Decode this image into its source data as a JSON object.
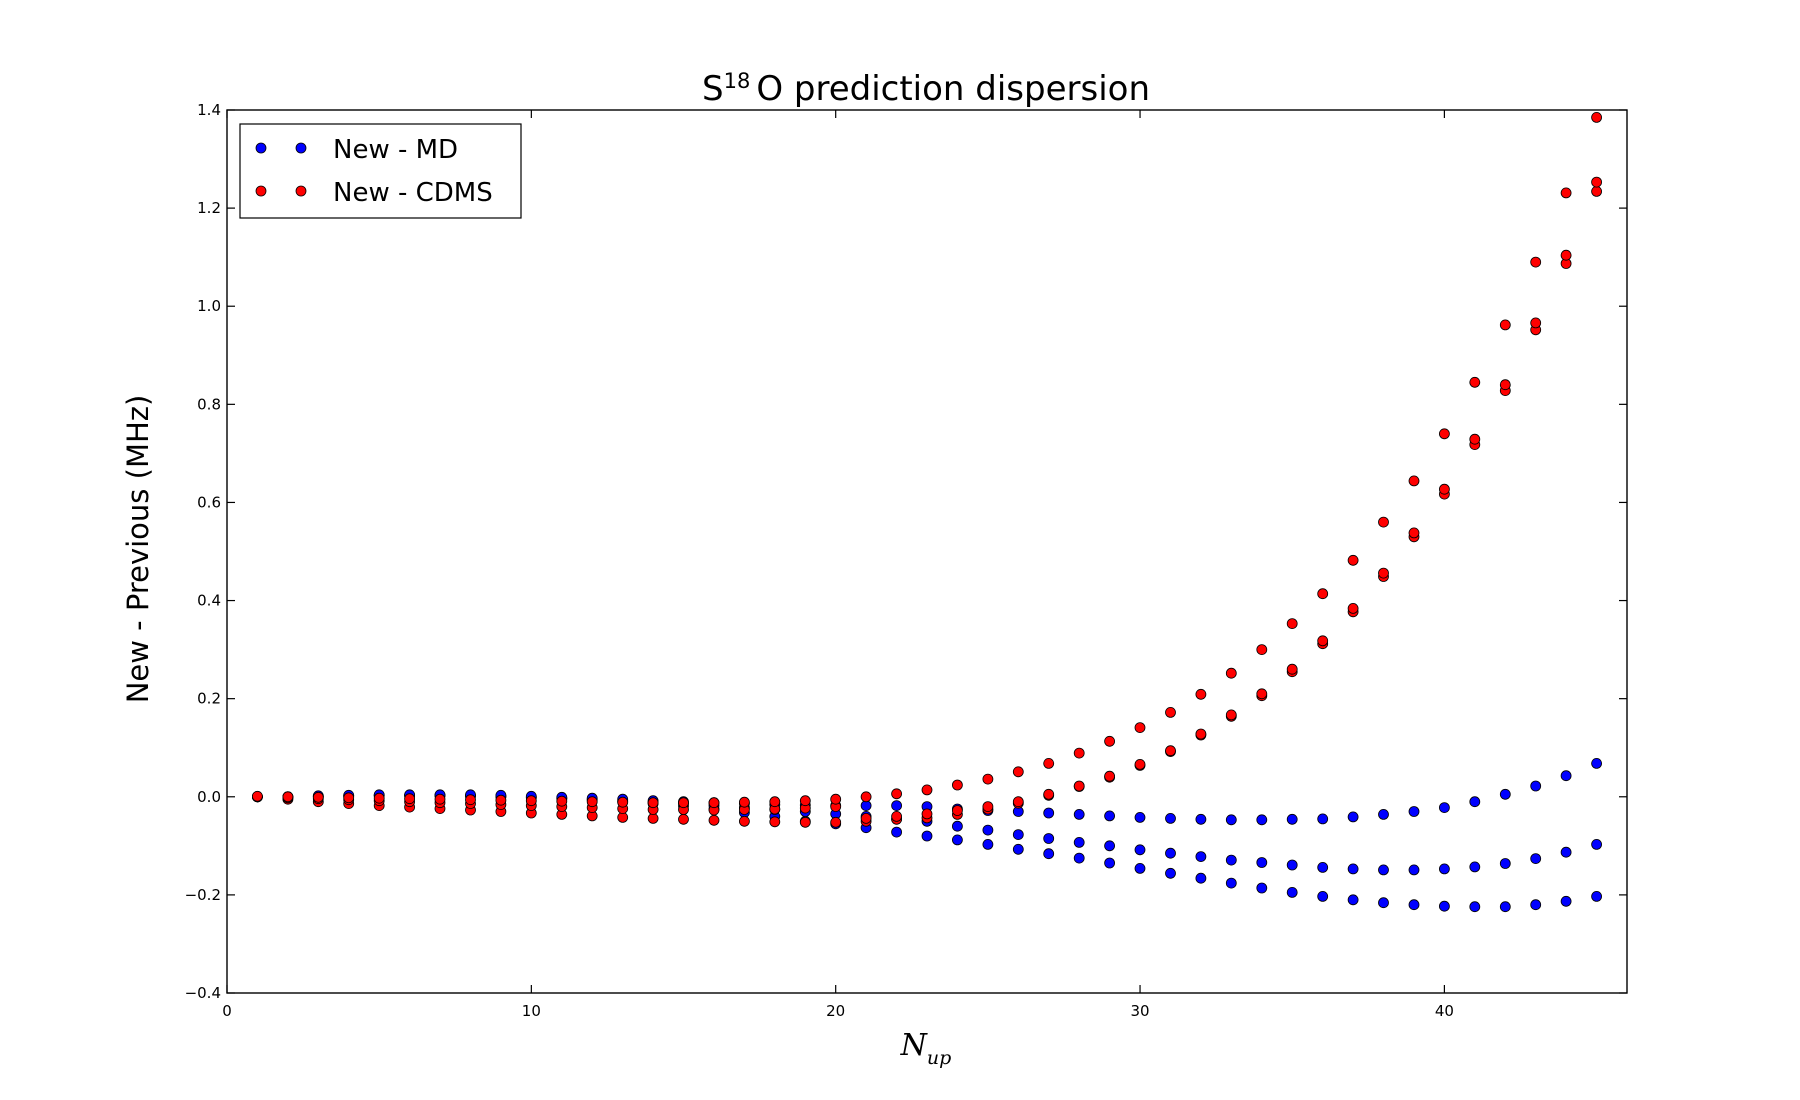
{
  "chart_data": {
    "type": "scatter",
    "title": {
      "base": "S",
      "sup": "18",
      "rest": "O prediction dispersion"
    },
    "xlabel": {
      "base": "N",
      "sub": "up"
    },
    "ylabel": "New - Previous (MHz)",
    "xlim": [
      0,
      46
    ],
    "ylim": [
      -0.4,
      1.4
    ],
    "x_ticks": [
      0,
      10,
      20,
      30,
      40
    ],
    "x_tick_labels": [
      "0",
      "10",
      "20",
      "30",
      "40"
    ],
    "y_ticks": [
      -0.4,
      -0.2,
      0.0,
      0.2,
      0.4,
      0.6,
      0.8,
      1.0,
      1.2,
      1.4
    ],
    "y_tick_labels": [
      "−0.4",
      "−0.2",
      "0.0",
      "0.2",
      "0.4",
      "0.6",
      "0.8",
      "1.0",
      "1.2",
      "1.4"
    ],
    "grid": false,
    "legend_position": "top-left",
    "series": [
      {
        "name": "New - MD",
        "color": "#0000ff",
        "points": [
          [
            1,
            0.0
          ],
          [
            1,
            0.0
          ],
          [
            1,
            0.0
          ],
          [
            2,
            0.0
          ],
          [
            2,
            0.0
          ],
          [
            2,
            0.0
          ],
          [
            3,
            0.0
          ],
          [
            3,
            0.001
          ],
          [
            3,
            0.002
          ],
          [
            4,
            0.001
          ],
          [
            4,
            0.002
          ],
          [
            4,
            0.003
          ],
          [
            5,
            0.002
          ],
          [
            5,
            0.003
          ],
          [
            5,
            0.004
          ],
          [
            6,
            0.002
          ],
          [
            6,
            0.003
          ],
          [
            6,
            0.004
          ],
          [
            7,
            0.002
          ],
          [
            7,
            0.003
          ],
          [
            7,
            0.004
          ],
          [
            8,
            0.001
          ],
          [
            8,
            0.002
          ],
          [
            8,
            0.004
          ],
          [
            9,
            0.0
          ],
          [
            9,
            0.001
          ],
          [
            9,
            0.003
          ],
          [
            10,
            -0.002
          ],
          [
            10,
            -0.001
          ],
          [
            10,
            0.001
          ],
          [
            11,
            -0.004
          ],
          [
            11,
            -0.003
          ],
          [
            11,
            -0.001
          ],
          [
            12,
            -0.007
          ],
          [
            12,
            -0.005
          ],
          [
            12,
            -0.003
          ],
          [
            13,
            -0.01
          ],
          [
            13,
            -0.008
          ],
          [
            13,
            -0.005
          ],
          [
            14,
            -0.014
          ],
          [
            14,
            -0.011
          ],
          [
            14,
            -0.008
          ],
          [
            15,
            -0.019
          ],
          [
            15,
            -0.014
          ],
          [
            15,
            -0.01
          ],
          [
            16,
            -0.025
          ],
          [
            16,
            -0.018
          ],
          [
            16,
            -0.012
          ],
          [
            17,
            -0.032
          ],
          [
            17,
            -0.022
          ],
          [
            17,
            -0.014
          ],
          [
            18,
            -0.04
          ],
          [
            18,
            -0.026
          ],
          [
            18,
            -0.016
          ],
          [
            19,
            -0.05
          ],
          [
            19,
            -0.03
          ],
          [
            19,
            -0.017
          ],
          [
            20,
            -0.055
          ],
          [
            20,
            -0.035
          ],
          [
            20,
            -0.018
          ],
          [
            21,
            -0.063
          ],
          [
            21,
            -0.04
          ],
          [
            21,
            -0.018
          ],
          [
            22,
            -0.072
          ],
          [
            22,
            -0.045
          ],
          [
            22,
            -0.018
          ],
          [
            23,
            -0.08
          ],
          [
            23,
            -0.05
          ],
          [
            23,
            -0.02
          ],
          [
            24,
            -0.088
          ],
          [
            24,
            -0.06
          ],
          [
            24,
            -0.025
          ],
          [
            25,
            -0.097
          ],
          [
            25,
            -0.068
          ],
          [
            25,
            -0.028
          ],
          [
            26,
            -0.107
          ],
          [
            26,
            -0.077
          ],
          [
            26,
            -0.03
          ],
          [
            27,
            -0.116
          ],
          [
            27,
            -0.085
          ],
          [
            27,
            -0.033
          ],
          [
            28,
            -0.125
          ],
          [
            28,
            -0.093
          ],
          [
            28,
            -0.036
          ],
          [
            29,
            -0.135
          ],
          [
            29,
            -0.1
          ],
          [
            29,
            -0.039
          ],
          [
            30,
            -0.146
          ],
          [
            30,
            -0.108
          ],
          [
            30,
            -0.042
          ],
          [
            31,
            -0.156
          ],
          [
            31,
            -0.115
          ],
          [
            31,
            -0.044
          ],
          [
            32,
            -0.166
          ],
          [
            32,
            -0.122
          ],
          [
            32,
            -0.046
          ],
          [
            33,
            -0.176
          ],
          [
            33,
            -0.129
          ],
          [
            33,
            -0.047
          ],
          [
            34,
            -0.186
          ],
          [
            34,
            -0.134
          ],
          [
            34,
            -0.047
          ],
          [
            35,
            -0.195
          ],
          [
            35,
            -0.139
          ],
          [
            35,
            -0.046
          ],
          [
            36,
            -0.203
          ],
          [
            36,
            -0.144
          ],
          [
            36,
            -0.045
          ],
          [
            37,
            -0.21
          ],
          [
            37,
            -0.147
          ],
          [
            37,
            -0.041
          ],
          [
            38,
            -0.216
          ],
          [
            38,
            -0.149
          ],
          [
            38,
            -0.036
          ],
          [
            39,
            -0.22
          ],
          [
            39,
            -0.149
          ],
          [
            39,
            -0.03
          ],
          [
            40,
            -0.223
          ],
          [
            40,
            -0.147
          ],
          [
            40,
            -0.022
          ],
          [
            41,
            -0.224
          ],
          [
            41,
            -0.143
          ],
          [
            41,
            -0.01
          ],
          [
            42,
            -0.224
          ],
          [
            42,
            -0.136
          ],
          [
            42,
            0.005
          ],
          [
            43,
            -0.22
          ],
          [
            43,
            -0.126
          ],
          [
            43,
            0.022
          ],
          [
            44,
            -0.213
          ],
          [
            44,
            -0.113
          ],
          [
            44,
            0.043
          ],
          [
            45,
            -0.203
          ],
          [
            45,
            -0.097
          ],
          [
            45,
            0.068
          ]
        ]
      },
      {
        "name": "New - CDMS",
        "color": "#ff0000",
        "points": [
          [
            1,
            0.0
          ],
          [
            1,
            0.0
          ],
          [
            1,
            0.001
          ],
          [
            2,
            -0.005
          ],
          [
            2,
            -0.002
          ],
          [
            2,
            0.0
          ],
          [
            3,
            -0.01
          ],
          [
            3,
            -0.004
          ],
          [
            3,
            -0.001
          ],
          [
            4,
            -0.014
          ],
          [
            4,
            -0.006
          ],
          [
            4,
            -0.002
          ],
          [
            5,
            -0.018
          ],
          [
            5,
            -0.008
          ],
          [
            5,
            -0.003
          ],
          [
            6,
            -0.021
          ],
          [
            6,
            -0.01
          ],
          [
            6,
            -0.004
          ],
          [
            7,
            -0.024
          ],
          [
            7,
            -0.012
          ],
          [
            7,
            -0.005
          ],
          [
            8,
            -0.027
          ],
          [
            8,
            -0.014
          ],
          [
            8,
            -0.006
          ],
          [
            9,
            -0.03
          ],
          [
            9,
            -0.016
          ],
          [
            9,
            -0.007
          ],
          [
            10,
            -0.033
          ],
          [
            10,
            -0.018
          ],
          [
            10,
            -0.008
          ],
          [
            11,
            -0.036
          ],
          [
            11,
            -0.02
          ],
          [
            11,
            -0.009
          ],
          [
            12,
            -0.039
          ],
          [
            12,
            -0.022
          ],
          [
            12,
            -0.01
          ],
          [
            13,
            -0.042
          ],
          [
            13,
            -0.024
          ],
          [
            13,
            -0.011
          ],
          [
            14,
            -0.044
          ],
          [
            14,
            -0.026
          ],
          [
            14,
            -0.012
          ],
          [
            15,
            -0.046
          ],
          [
            15,
            -0.026
          ],
          [
            15,
            -0.012
          ],
          [
            16,
            -0.048
          ],
          [
            16,
            -0.027
          ],
          [
            16,
            -0.012
          ],
          [
            17,
            -0.05
          ],
          [
            17,
            -0.026
          ],
          [
            17,
            -0.011
          ],
          [
            18,
            -0.051
          ],
          [
            18,
            -0.025
          ],
          [
            18,
            -0.01
          ],
          [
            19,
            -0.052
          ],
          [
            19,
            -0.023
          ],
          [
            19,
            -0.008
          ],
          [
            20,
            -0.052
          ],
          [
            20,
            -0.02
          ],
          [
            20,
            -0.005
          ],
          [
            21,
            -0.05
          ],
          [
            21,
            -0.044
          ],
          [
            21,
            0.0
          ],
          [
            22,
            -0.046
          ],
          [
            22,
            -0.04
          ],
          [
            22,
            0.006
          ],
          [
            23,
            -0.043
          ],
          [
            23,
            -0.035
          ],
          [
            23,
            0.014
          ],
          [
            24,
            -0.036
          ],
          [
            24,
            -0.028
          ],
          [
            24,
            0.024
          ],
          [
            25,
            -0.025
          ],
          [
            25,
            -0.02
          ],
          [
            25,
            0.036
          ],
          [
            26,
            -0.013
          ],
          [
            26,
            -0.01
          ],
          [
            26,
            0.051
          ],
          [
            27,
            0.003
          ],
          [
            27,
            0.005
          ],
          [
            27,
            0.068
          ],
          [
            28,
            0.021
          ],
          [
            28,
            0.022
          ],
          [
            28,
            0.089
          ],
          [
            29,
            0.04
          ],
          [
            29,
            0.042
          ],
          [
            29,
            0.113
          ],
          [
            30,
            0.064
          ],
          [
            30,
            0.066
          ],
          [
            30,
            0.141
          ],
          [
            31,
            0.092
          ],
          [
            31,
            0.094
          ],
          [
            31,
            0.172
          ],
          [
            32,
            0.126
          ],
          [
            32,
            0.128
          ],
          [
            32,
            0.209
          ],
          [
            33,
            0.164
          ],
          [
            33,
            0.167
          ],
          [
            33,
            0.252
          ],
          [
            34,
            0.206
          ],
          [
            34,
            0.21
          ],
          [
            34,
            0.3
          ],
          [
            35,
            0.255
          ],
          [
            35,
            0.26
          ],
          [
            35,
            0.353
          ],
          [
            36,
            0.312
          ],
          [
            36,
            0.318
          ],
          [
            36,
            0.414
          ],
          [
            37,
            0.377
          ],
          [
            37,
            0.384
          ],
          [
            37,
            0.482
          ],
          [
            38,
            0.449
          ],
          [
            38,
            0.456
          ],
          [
            38,
            0.56
          ],
          [
            39,
            0.53
          ],
          [
            39,
            0.538
          ],
          [
            39,
            0.644
          ],
          [
            40,
            0.617
          ],
          [
            40,
            0.627
          ],
          [
            40,
            0.74
          ],
          [
            41,
            0.718
          ],
          [
            41,
            0.729
          ],
          [
            41,
            0.845
          ],
          [
            42,
            0.828
          ],
          [
            42,
            0.84
          ],
          [
            42,
            0.962
          ],
          [
            43,
            0.952
          ],
          [
            43,
            0.966
          ],
          [
            43,
            1.09
          ],
          [
            44,
            1.087
          ],
          [
            44,
            1.104
          ],
          [
            44,
            1.231
          ],
          [
            45,
            1.234
          ],
          [
            45,
            1.253
          ],
          [
            45,
            1.385
          ]
        ]
      }
    ]
  }
}
